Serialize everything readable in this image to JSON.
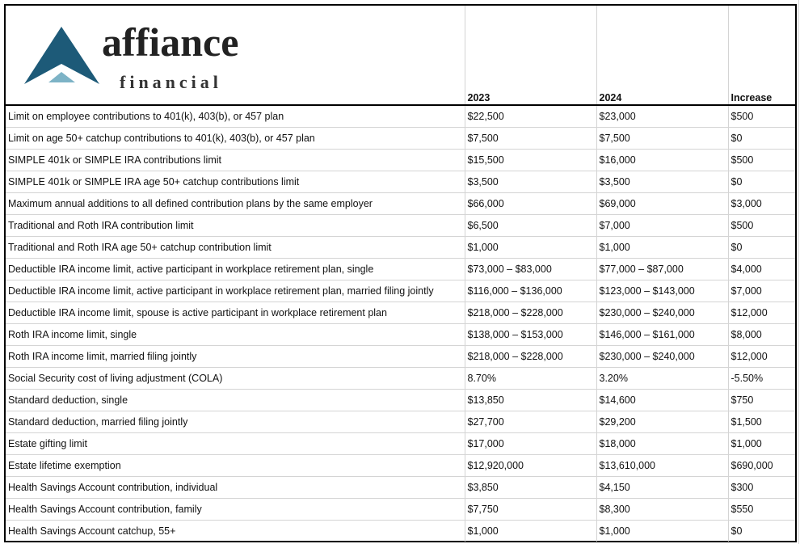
{
  "logo": {
    "name": "affiance",
    "sub": "financial",
    "colors": {
      "dark": "#1d5a78",
      "light": "#7db3c6"
    }
  },
  "columns": [
    "",
    "2023",
    "2024",
    "Increase"
  ],
  "rows": [
    [
      "Limit on employee contributions to 401(k), 403(b), or 457 plan",
      "$22,500",
      "$23,000",
      "$500"
    ],
    [
      "Limit on age 50+ catchup contributions to 401(k), 403(b), or 457 plan",
      "$7,500",
      "$7,500",
      "$0"
    ],
    [
      "SIMPLE 401k or SIMPLE IRA contributions limit",
      "$15,500",
      "$16,000",
      "$500"
    ],
    [
      "SIMPLE 401k or SIMPLE IRA age 50+ catchup contributions limit",
      "$3,500",
      "$3,500",
      "$0"
    ],
    [
      "Maximum annual additions to all defined contribution plans by the same employer",
      "$66,000",
      "$69,000",
      "$3,000"
    ],
    [
      "Traditional and Roth IRA contribution limit",
      "$6,500",
      "$7,000",
      "$500"
    ],
    [
      "Traditional and Roth IRA age 50+ catchup contribution limit",
      "$1,000",
      "$1,000",
      "$0"
    ],
    [
      "Deductible IRA income limit, active participant in workplace retirement plan, single",
      "$73,000 – $83,000",
      "$77,000 – $87,000",
      "$4,000"
    ],
    [
      "Deductible IRA income limit, active participant in workplace retirement plan, married filing jointly",
      "$116,000 – $136,000",
      "$123,000 – $143,000",
      "$7,000"
    ],
    [
      "Deductible IRA income limit, spouse is active participant in workplace retirement plan",
      "$218,000 – $228,000",
      "$230,000 – $240,000",
      "$12,000"
    ],
    [
      "Roth IRA income limit, single",
      "$138,000 – $153,000",
      "$146,000 – $161,000",
      "$8,000"
    ],
    [
      "Roth IRA income limit, married filing jointly",
      "$218,000 – $228,000",
      "$230,000 – $240,000",
      "$12,000"
    ],
    [
      "Social Security cost of living adjustment (COLA)",
      "8.70%",
      "3.20%",
      "-5.50%"
    ],
    [
      "Standard deduction, single",
      "$13,850",
      "$14,600",
      "$750"
    ],
    [
      "Standard deduction, married filing jointly",
      "$27,700",
      "$29,200",
      "$1,500"
    ],
    [
      "Estate gifting limit",
      "$17,000",
      "$18,000",
      "$1,000"
    ],
    [
      "Estate lifetime exemption",
      "$12,920,000",
      "$13,610,000",
      "$690,000"
    ],
    [
      "Health Savings Account contribution, individual",
      "$3,850",
      "$4,150",
      "$300"
    ],
    [
      "Health Savings Account contribution, family",
      "$7,750",
      "$8,300",
      "$550"
    ],
    [
      "Health Savings Account catchup, 55+",
      "$1,000",
      "$1,000",
      "$0"
    ]
  ]
}
